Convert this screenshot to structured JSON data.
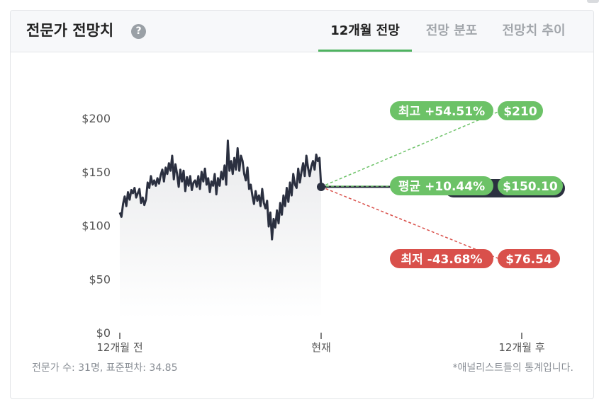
{
  "header": {
    "title": "전문가 전망치",
    "help_icon": "?",
    "tabs": [
      {
        "label": "12개월 전망",
        "active": true
      },
      {
        "label": "전망 분포",
        "active": false
      },
      {
        "label": "전망치 추이",
        "active": false
      }
    ]
  },
  "chart_data": {
    "type": "line",
    "y_ticks": [
      "$200",
      "$150",
      "$100",
      "$50",
      "$0"
    ],
    "ylim": [
      0,
      200
    ],
    "x_ticks": [
      "12개월 전",
      "현재",
      "12개월 후"
    ],
    "series": [
      {
        "values": [
          112,
          108,
          120,
          127,
          118,
          131,
          124,
          133,
          130,
          135,
          126,
          130,
          134,
          121,
          126,
          119,
          124,
          140,
          135,
          146,
          138,
          142,
          137,
          144,
          139,
          147,
          152,
          141,
          154,
          148,
          158,
          151,
          165,
          143,
          157,
          148,
          136,
          152,
          141,
          151,
          132,
          145,
          137,
          146,
          133,
          140,
          142,
          136,
          146,
          134,
          150,
          141,
          153,
          138,
          144,
          131,
          141,
          137,
          148,
          129,
          144,
          137,
          150,
          143,
          156,
          138,
          179,
          151,
          160,
          148,
          163,
          152,
          172,
          151,
          165,
          160,
          148,
          142,
          154,
          134,
          138,
          128,
          120,
          132,
          123,
          128,
          118,
          134,
          121,
          116,
          123,
          99,
          112,
          87,
          106,
          98,
          114,
          102,
          121,
          110,
          128,
          118,
          135,
          122,
          140,
          128,
          148,
          138,
          135,
          153,
          140,
          150,
          158,
          146,
          165,
          154,
          146,
          155,
          160,
          152,
          166,
          160,
          163,
          136
        ]
      },
      {
        "name": "최고",
        "pct_label": "최고 +54.51%",
        "value_label": "$210",
        "target": 210,
        "color": "#6cc267"
      },
      {
        "name": "평균",
        "pct_label": "평균 +10.44%",
        "value_label": "$150.10",
        "target": 150.1,
        "color": "#6cc267"
      },
      {
        "name": "최저",
        "pct_label": "최저 -43.68%",
        "value_label": "$76.54",
        "target": 76.54,
        "color": "#d9504b"
      }
    ],
    "current_price": 136
  },
  "footer": {
    "left": "전문가 수: 31명, 표준편차: 34.85",
    "right": "*애널리스트들의 통계입니다."
  }
}
